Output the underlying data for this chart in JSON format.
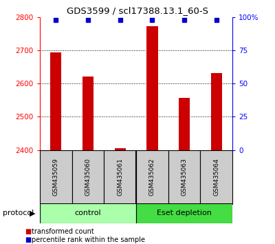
{
  "title": "GDS3599 / scl17388.13.1_60-S",
  "samples": [
    "GSM435059",
    "GSM435060",
    "GSM435061",
    "GSM435062",
    "GSM435063",
    "GSM435064"
  ],
  "red_values": [
    2693,
    2622,
    2405,
    2773,
    2557,
    2632
  ],
  "blue_values": [
    100,
    100,
    100,
    100,
    100,
    100
  ],
  "ylim_left": [
    2400,
    2800
  ],
  "ylim_right": [
    0,
    100
  ],
  "yticks_left": [
    2400,
    2500,
    2600,
    2700,
    2800
  ],
  "yticks_right": [
    0,
    25,
    50,
    75,
    100
  ],
  "ytick_labels_right": [
    "0",
    "25",
    "50",
    "75",
    "100%"
  ],
  "grid_values": [
    2500,
    2600,
    2700
  ],
  "bar_color": "#cc0000",
  "dot_color": "#0000cc",
  "control_label": "control",
  "eset_label": "Eset depletion",
  "protocol_label": "protocol",
  "legend_red_label": "transformed count",
  "legend_blue_label": "percentile rank within the sample",
  "control_color": "#aaffaa",
  "eset_color": "#44dd44",
  "sample_bg_color": "#cccccc",
  "background_color": "#ffffff",
  "bar_width": 0.35
}
